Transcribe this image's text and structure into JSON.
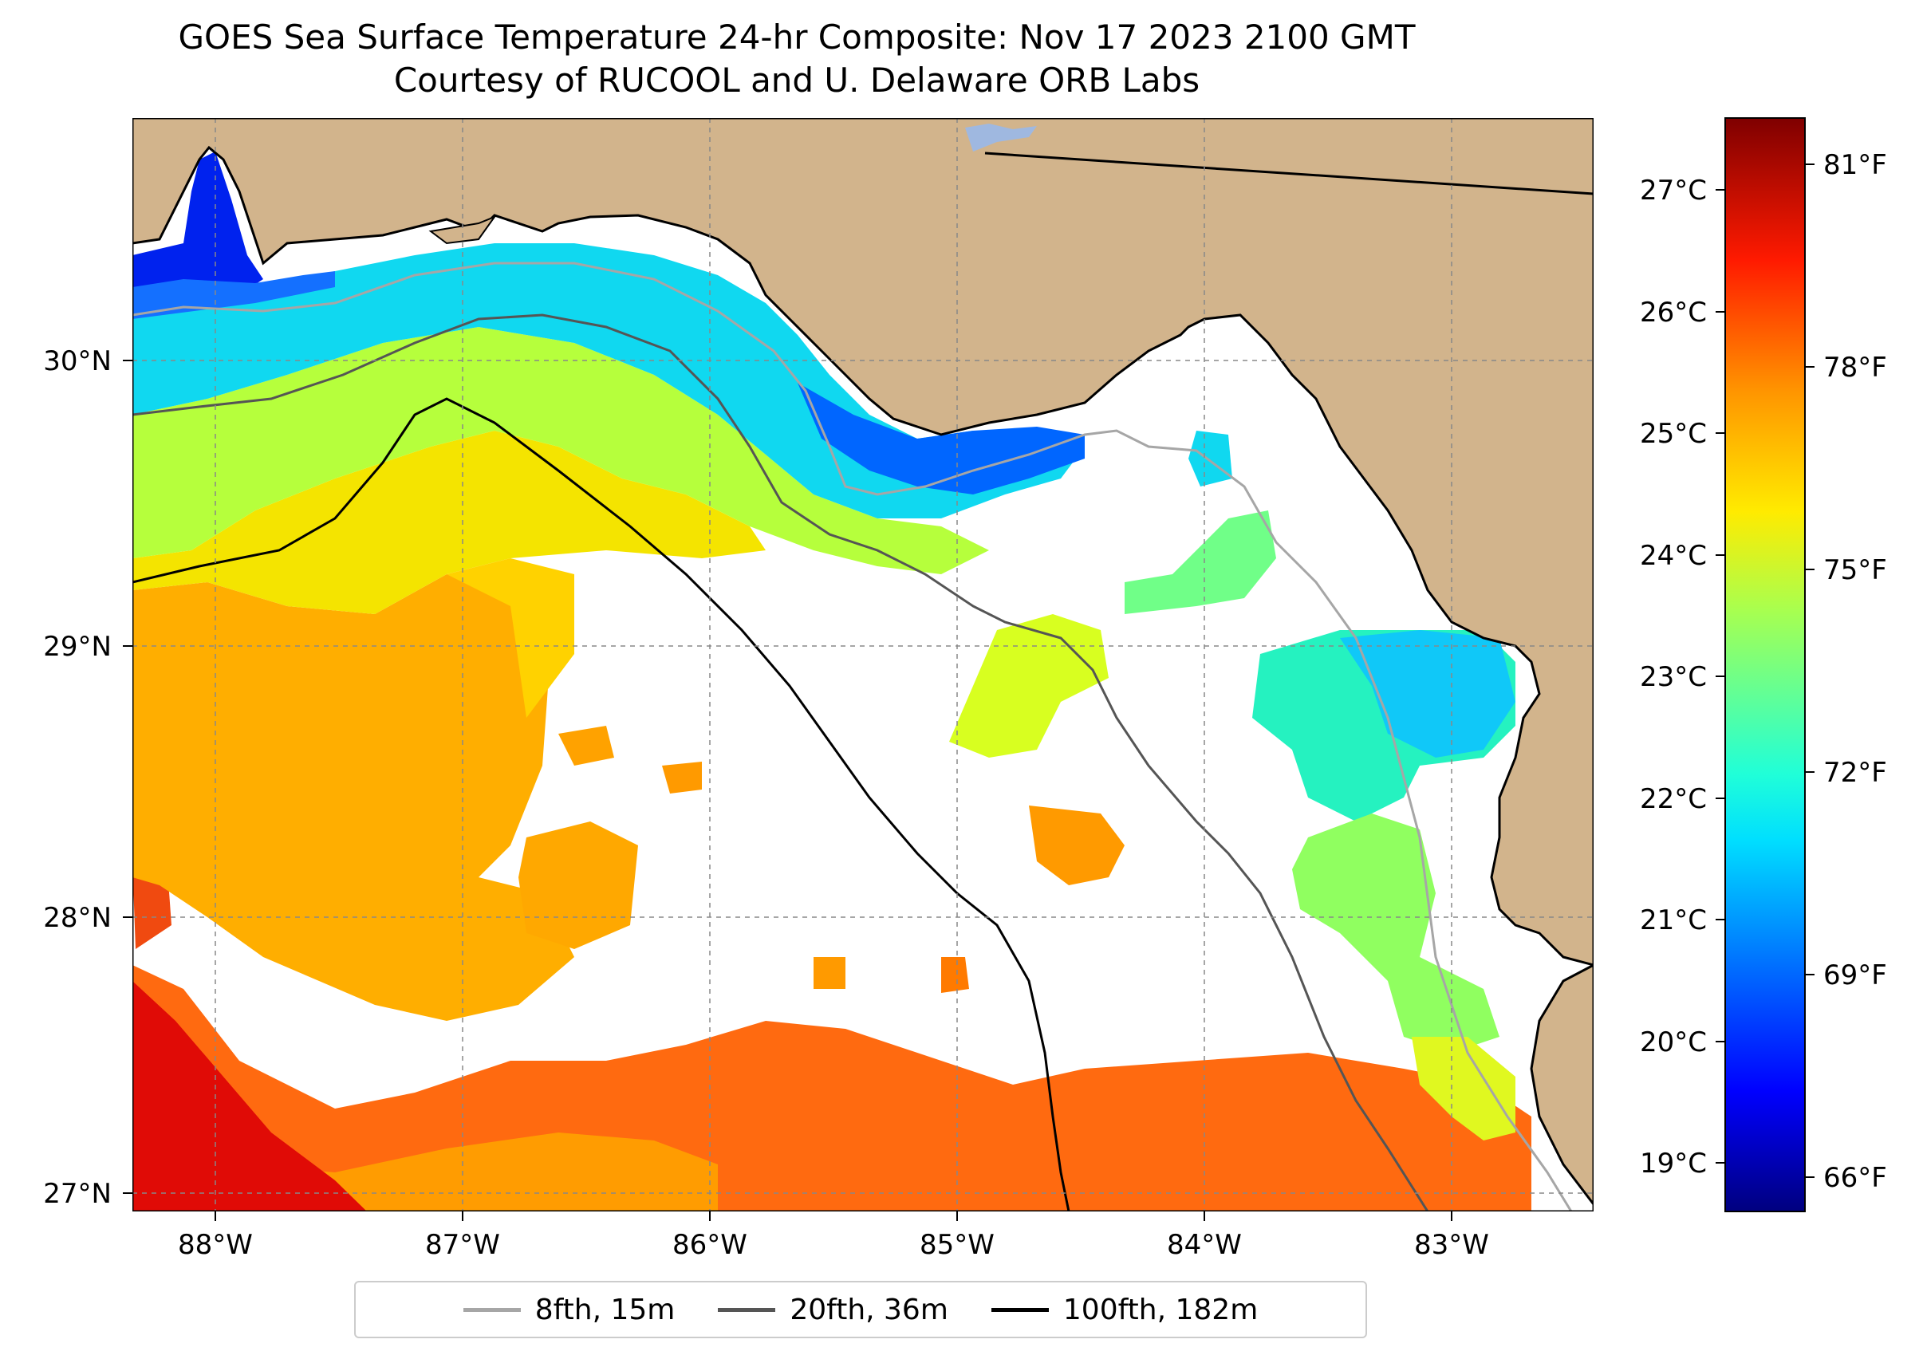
{
  "title": "GOES Sea Surface Temperature 24-hr Composite: Nov 17 2023 2100 GMT",
  "subtitle": "Courtesy of RUCOOL and U. Delaware ORB Labs",
  "map": {
    "land_color": "#d2b48c",
    "ocean_nodata_color": "#ffffff",
    "lon_ticks": [
      "88°W",
      "87°W",
      "86°W",
      "85°W",
      "84°W",
      "83°W"
    ],
    "lat_ticks": [
      "30°N",
      "29°N",
      "28°N",
      "27°N"
    ],
    "gridlines": "on (dashed)"
  },
  "colorbar": {
    "colormap": "jet",
    "celsius_ticks": [
      "27°C",
      "26°C",
      "25°C",
      "24°C",
      "23°C",
      "22°C",
      "21°C",
      "20°C",
      "19°C"
    ],
    "fahrenheit_ticks": [
      "81°F",
      "78°F",
      "75°F",
      "72°F",
      "69°F",
      "66°F"
    ]
  },
  "legend": {
    "placement": "bottom-center",
    "items": [
      {
        "label": "8fth, 15m",
        "color": "#a6a6a6"
      },
      {
        "label": "20fth, 36m",
        "color": "#555555"
      },
      {
        "label": "100fth, 182m",
        "color": "#000000"
      }
    ]
  }
}
